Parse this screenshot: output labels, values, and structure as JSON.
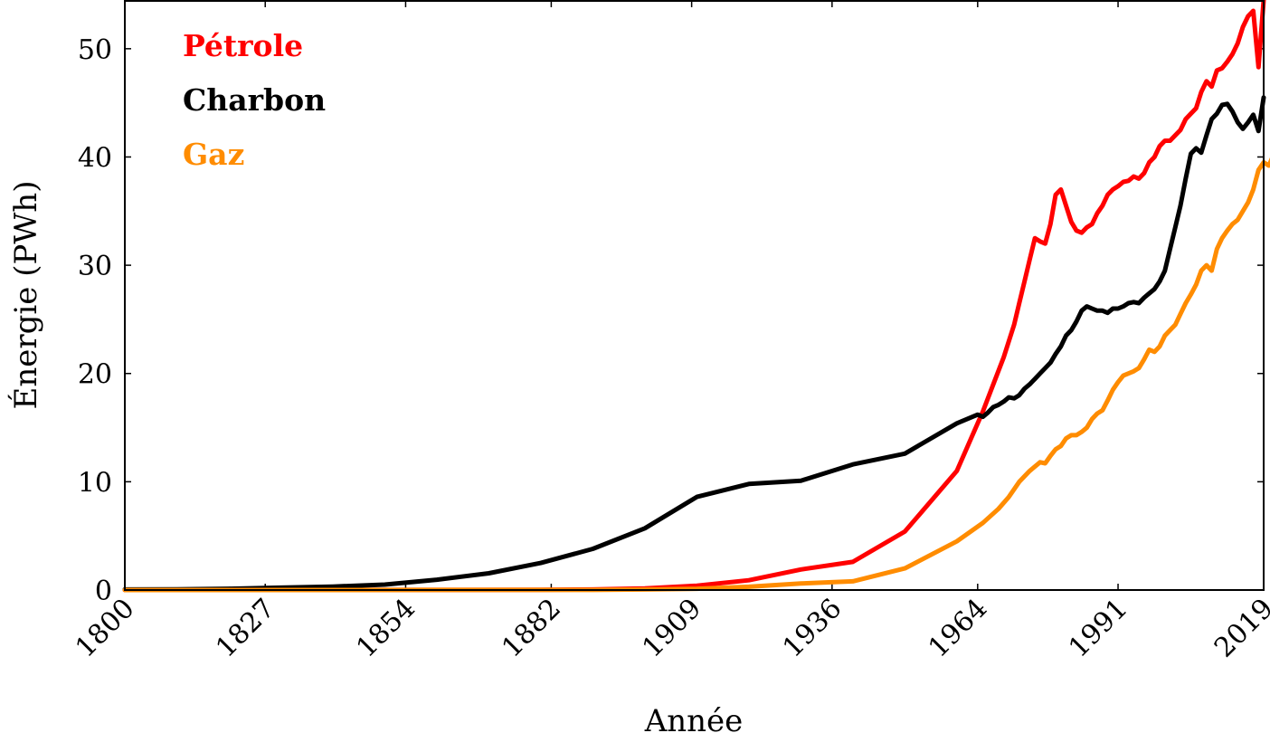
{
  "chart_data": {
    "type": "line",
    "xlabel": "Année",
    "ylabel": "Énergie (PWh)",
    "xlim": [
      1800,
      2019
    ],
    "ylim": [
      0,
      54.5
    ],
    "x_ticks": [
      1800,
      1827,
      1854,
      1882,
      1909,
      1936,
      1964,
      1991,
      2019
    ],
    "x_tick_labels": [
      "1800",
      "1827",
      "1854",
      "1882",
      "1909",
      "1936",
      "1964",
      "1991",
      "2019"
    ],
    "y_ticks": [
      0,
      10,
      20,
      30,
      40,
      50
    ],
    "y_tick_labels": [
      "0",
      "10",
      "20",
      "30",
      "40",
      "50"
    ],
    "grid": false,
    "legend": {
      "placement": "top-left"
    },
    "series": [
      {
        "name": "Pétrole",
        "color": "#ff0000",
        "points": [
          [
            1800,
            0
          ],
          [
            1860,
            0.01
          ],
          [
            1880,
            0.02
          ],
          [
            1890,
            0.05
          ],
          [
            1900,
            0.15
          ],
          [
            1910,
            0.4
          ],
          [
            1920,
            0.9
          ],
          [
            1930,
            1.9
          ],
          [
            1940,
            2.6
          ],
          [
            1950,
            5.4
          ],
          [
            1960,
            11
          ],
          [
            1965,
            16.5
          ],
          [
            1967,
            19
          ],
          [
            1969,
            21.5
          ],
          [
            1971,
            24.5
          ],
          [
            1972,
            26.5
          ],
          [
            1973,
            28.5
          ],
          [
            1974,
            30.5
          ],
          [
            1975,
            32.5
          ],
          [
            1976,
            32.2
          ],
          [
            1977,
            32.0
          ],
          [
            1978,
            33.8
          ],
          [
            1979,
            36.5
          ],
          [
            1980,
            37.0
          ],
          [
            1981,
            35.5
          ],
          [
            1982,
            34.0
          ],
          [
            1983,
            33.2
          ],
          [
            1984,
            33.0
          ],
          [
            1985,
            33.5
          ],
          [
            1986,
            33.8
          ],
          [
            1987,
            34.8
          ],
          [
            1988,
            35.5
          ],
          [
            1989,
            36.5
          ],
          [
            1990,
            37.0
          ],
          [
            1991,
            37.3
          ],
          [
            1992,
            37.7
          ],
          [
            1993,
            37.8
          ],
          [
            1994,
            38.2
          ],
          [
            1995,
            38.0
          ],
          [
            1996,
            38.5
          ],
          [
            1997,
            39.5
          ],
          [
            1998,
            40.0
          ],
          [
            1999,
            41.0
          ],
          [
            2000,
            41.5
          ],
          [
            2001,
            41.5
          ],
          [
            2002,
            42.0
          ],
          [
            2003,
            42.5
          ],
          [
            2004,
            43.5
          ],
          [
            2005,
            44.0
          ],
          [
            2006,
            44.5
          ],
          [
            2007,
            46.0
          ],
          [
            2008,
            47.0
          ],
          [
            2009,
            46.5
          ],
          [
            2010,
            48.0
          ],
          [
            2011,
            48.2
          ],
          [
            2012,
            48.8
          ],
          [
            2013,
            49.5
          ],
          [
            2014,
            50.5
          ],
          [
            2015,
            52.0
          ],
          [
            2016,
            53.0
          ],
          [
            2017,
            53.5
          ],
          [
            2018,
            48.3
          ],
          [
            2019,
            54.5
          ]
        ]
      },
      {
        "name": "Charbon",
        "color": "#000000",
        "points": [
          [
            1800,
            0.05
          ],
          [
            1810,
            0.06
          ],
          [
            1820,
            0.12
          ],
          [
            1830,
            0.22
          ],
          [
            1840,
            0.32
          ],
          [
            1850,
            0.5
          ],
          [
            1860,
            0.95
          ],
          [
            1870,
            1.55
          ],
          [
            1880,
            2.5
          ],
          [
            1890,
            3.8
          ],
          [
            1900,
            5.7
          ],
          [
            1910,
            8.6
          ],
          [
            1920,
            9.8
          ],
          [
            1930,
            10.1
          ],
          [
            1940,
            11.6
          ],
          [
            1950,
            12.6
          ],
          [
            1960,
            15.4
          ],
          [
            1963,
            16.0
          ],
          [
            1964,
            16.2
          ],
          [
            1965,
            16.0
          ],
          [
            1966,
            16.4
          ],
          [
            1967,
            16.9
          ],
          [
            1968,
            17.1
          ],
          [
            1969,
            17.4
          ],
          [
            1970,
            17.8
          ],
          [
            1971,
            17.7
          ],
          [
            1972,
            18.0
          ],
          [
            1973,
            18.6
          ],
          [
            1974,
            19.0
          ],
          [
            1975,
            19.5
          ],
          [
            1976,
            20.0
          ],
          [
            1977,
            20.5
          ],
          [
            1978,
            21.0
          ],
          [
            1979,
            21.8
          ],
          [
            1980,
            22.5
          ],
          [
            1981,
            23.5
          ],
          [
            1982,
            24.0
          ],
          [
            1983,
            24.8
          ],
          [
            1984,
            25.8
          ],
          [
            1985,
            26.2
          ],
          [
            1986,
            26.0
          ],
          [
            1987,
            25.8
          ],
          [
            1988,
            25.8
          ],
          [
            1989,
            25.6
          ],
          [
            1990,
            26.0
          ],
          [
            1991,
            26.0
          ],
          [
            1992,
            26.2
          ],
          [
            1993,
            26.5
          ],
          [
            1994,
            26.6
          ],
          [
            1995,
            26.5
          ],
          [
            1996,
            27.0
          ],
          [
            1997,
            27.4
          ],
          [
            1998,
            27.8
          ],
          [
            1999,
            28.5
          ],
          [
            2000,
            29.5
          ],
          [
            2001,
            31.5
          ],
          [
            2002,
            33.5
          ],
          [
            2003,
            35.5
          ],
          [
            2004,
            38.0
          ],
          [
            2005,
            40.3
          ],
          [
            2006,
            40.8
          ],
          [
            2007,
            40.4
          ],
          [
            2008,
            42.0
          ],
          [
            2009,
            43.5
          ],
          [
            2010,
            44.0
          ],
          [
            2011,
            44.8
          ],
          [
            2012,
            44.9
          ],
          [
            2013,
            44.2
          ],
          [
            2014,
            43.2
          ],
          [
            2015,
            42.6
          ],
          [
            2016,
            43.2
          ],
          [
            2017,
            43.9
          ],
          [
            2018,
            42.4
          ],
          [
            2019,
            45.5
          ]
        ]
      },
      {
        "name": "Gaz",
        "color": "#ff8c00",
        "points": [
          [
            1800,
            0
          ],
          [
            1890,
            0.01
          ],
          [
            1900,
            0.05
          ],
          [
            1910,
            0.12
          ],
          [
            1920,
            0.3
          ],
          [
            1930,
            0.6
          ],
          [
            1940,
            0.8
          ],
          [
            1950,
            2.0
          ],
          [
            1960,
            4.5
          ],
          [
            1965,
            6.2
          ],
          [
            1968,
            7.5
          ],
          [
            1970,
            8.6
          ],
          [
            1972,
            10.0
          ],
          [
            1974,
            11.0
          ],
          [
            1976,
            11.8
          ],
          [
            1977,
            11.7
          ],
          [
            1978,
            12.4
          ],
          [
            1979,
            13.0
          ],
          [
            1980,
            13.3
          ],
          [
            1981,
            14.0
          ],
          [
            1982,
            14.3
          ],
          [
            1983,
            14.3
          ],
          [
            1984,
            14.6
          ],
          [
            1985,
            15.0
          ],
          [
            1986,
            15.8
          ],
          [
            1987,
            16.3
          ],
          [
            1988,
            16.6
          ],
          [
            1989,
            17.5
          ],
          [
            1990,
            18.5
          ],
          [
            1991,
            19.2
          ],
          [
            1992,
            19.8
          ],
          [
            1993,
            20.0
          ],
          [
            1994,
            20.2
          ],
          [
            1995,
            20.5
          ],
          [
            1996,
            21.3
          ],
          [
            1997,
            22.2
          ],
          [
            1998,
            22.0
          ],
          [
            1999,
            22.5
          ],
          [
            2000,
            23.5
          ],
          [
            2001,
            24.0
          ],
          [
            2002,
            24.5
          ],
          [
            2003,
            25.5
          ],
          [
            2004,
            26.5
          ],
          [
            2005,
            27.3
          ],
          [
            2006,
            28.2
          ],
          [
            2007,
            29.5
          ],
          [
            2008,
            30.0
          ],
          [
            2009,
            29.5
          ],
          [
            2010,
            31.5
          ],
          [
            2011,
            32.5
          ],
          [
            2012,
            33.2
          ],
          [
            2013,
            33.8
          ],
          [
            2014,
            34.2
          ],
          [
            2015,
            35.0
          ],
          [
            2016,
            35.8
          ],
          [
            2017,
            37.0
          ],
          [
            2018,
            38.8
          ],
          [
            2019,
            39.5
          ],
          [
            2020,
            39.2
          ],
          [
            2021,
            40.3
          ],
          [
            2022,
            40.2
          ]
        ]
      }
    ]
  }
}
